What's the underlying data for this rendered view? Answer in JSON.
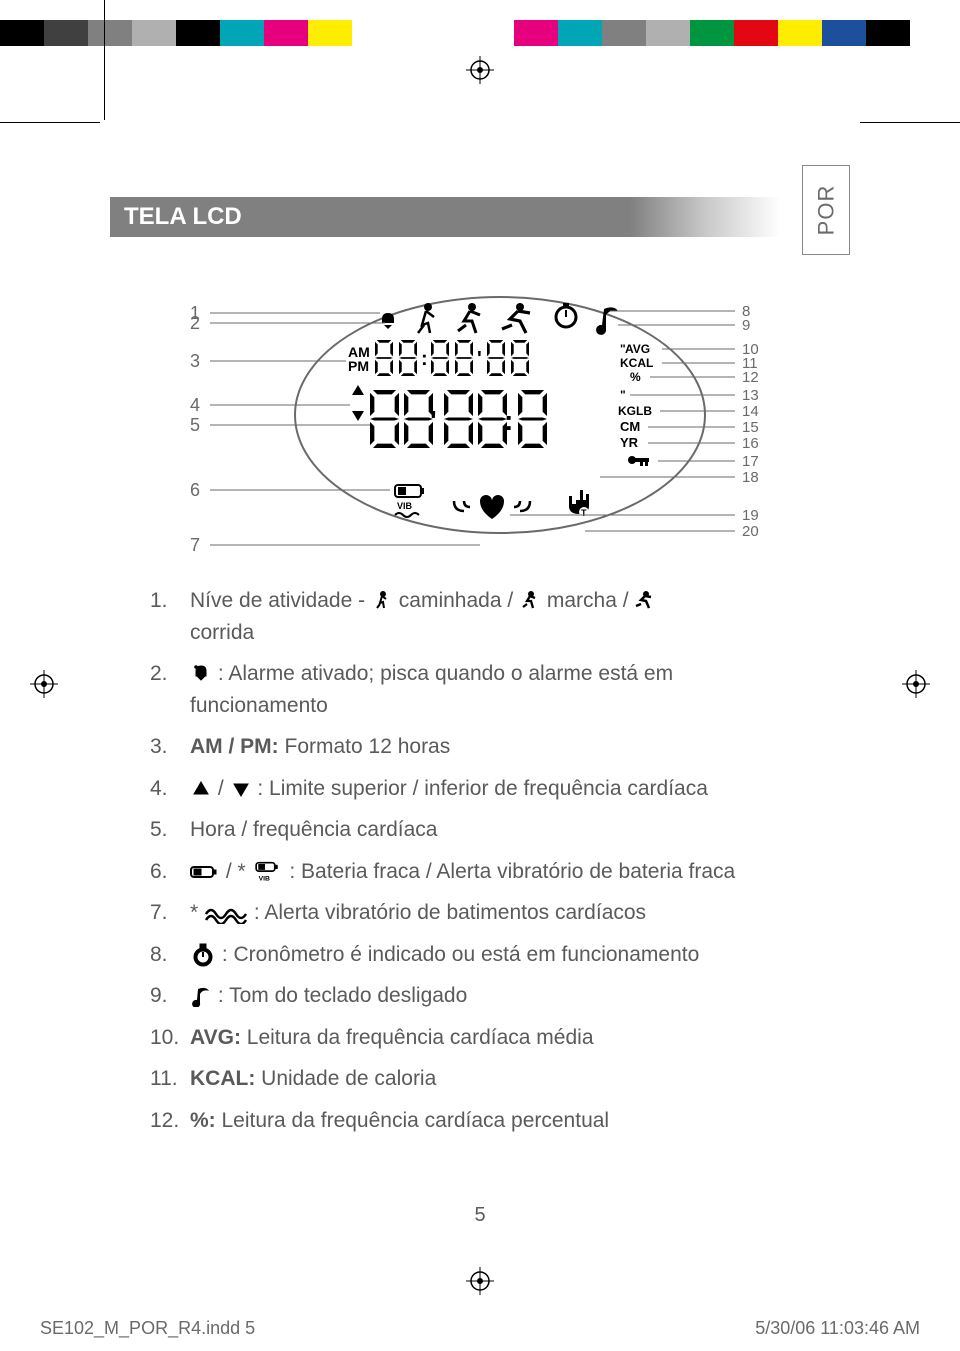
{
  "print_marks": {
    "color_swatches_left": [
      "#000000",
      "#404040",
      "#808080",
      "#b0b0b0",
      "#000000",
      "#00a6b5",
      "#e6007e",
      "#ffed00"
    ],
    "color_swatches_right": [
      "#e6007e",
      "#00a6b5",
      "#808080",
      "#b0b0b0",
      "#009640",
      "#e30613",
      "#ffed00",
      "#1d4f9c",
      "#000000"
    ],
    "background": "#ffffff"
  },
  "page": {
    "lang_label": "POR",
    "section_title": "TELA LCD",
    "page_number": "5",
    "text_color": "#5a5a5a",
    "title_bg": "#808080",
    "title_fg": "#ffffff"
  },
  "diagram": {
    "left_labels": [
      "1",
      "2",
      "3",
      "4",
      "5",
      "6",
      "7"
    ],
    "right_labels": [
      "8",
      "9",
      "10",
      "11",
      "12",
      "13",
      "14",
      "15",
      "16",
      "17",
      "18",
      "19",
      "20"
    ],
    "lcd_words_right": [
      "AVG",
      "KCAL",
      "%",
      "\"",
      "KGLB",
      "CM",
      "YR"
    ],
    "ampm": [
      "AM",
      "PM"
    ],
    "vib_label": "VIB",
    "label_color": "#6a6a6a",
    "line_color": "#6a6a6a",
    "lcd_fill": "#000000"
  },
  "list": {
    "items": [
      {
        "n": "1.",
        "pre": "Níve de atividade - ",
        "mid1": " caminhada / ",
        "mid2": " marcha / ",
        "post": " corrida"
      },
      {
        "n": "2.",
        "pre": "",
        "mid1": " : Alarme ativado; pisca quando o alarme está em funcionamento",
        "mid2": "",
        "post": ""
      },
      {
        "n": "3.",
        "pre": "",
        "mid1": "",
        "mid2": "",
        "post": "",
        "bold": "AM / PM:",
        "tail": " Formato 12 horas"
      },
      {
        "n": "4.",
        "pre": "",
        "mid1": " / ",
        "mid2": " : Limite superior / inferior de frequência cardíaca",
        "post": ""
      },
      {
        "n": "5.",
        "pre": "Hora / frequência cardíaca",
        "mid1": "",
        "mid2": "",
        "post": ""
      },
      {
        "n": "6.",
        "pre": "",
        "mid1": " / * ",
        "mid2": " : Bateria fraca / Alerta vibratório de bateria fraca",
        "post": ""
      },
      {
        "n": "7.",
        "pre": "* ",
        "mid1": " : Alerta vibratório de batimentos cardíacos",
        "mid2": "",
        "post": ""
      },
      {
        "n": "8.",
        "pre": "",
        "mid1": " : Cronômetro é indicado ou está em funcionamento",
        "mid2": "",
        "post": ""
      },
      {
        "n": "9.",
        "pre": "",
        "mid1": " : Tom do teclado desligado",
        "mid2": "",
        "post": ""
      },
      {
        "n": "10.",
        "pre": "",
        "mid1": "",
        "mid2": "",
        "post": "",
        "bold": "AVG:",
        "tail": " Leitura da frequência cardíaca média"
      },
      {
        "n": "11.",
        "pre": "",
        "mid1": "",
        "mid2": "",
        "post": "",
        "bold": "KCAL:",
        "tail": " Unidade de caloria"
      },
      {
        "n": "12.",
        "pre": "",
        "mid1": "",
        "mid2": "",
        "post": "",
        "bold": "%:",
        "tail": " Leitura da frequência cardíaca percentual"
      }
    ]
  },
  "footer": {
    "file": "SE102_M_POR_R4.indd   5",
    "timestamp": "5/30/06   11:03:46 AM"
  }
}
